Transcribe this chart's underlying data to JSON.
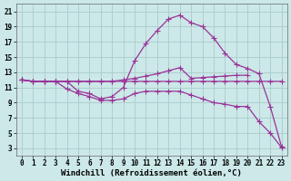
{
  "bg_color": "#cce8e8",
  "grid_color": "#aacccc",
  "line_color": "#993399",
  "line_width": 0.9,
  "marker": "+",
  "marker_size": 4,
  "xlabel": "Windchill (Refroidissement éolien,°C)",
  "xlabel_fontsize": 6.5,
  "tick_fontsize": 5.5,
  "xlim": [
    -0.5,
    23.5
  ],
  "ylim": [
    2,
    22
  ],
  "yticks": [
    3,
    5,
    7,
    9,
    11,
    13,
    15,
    17,
    19,
    21
  ],
  "xticks": [
    0,
    1,
    2,
    3,
    4,
    5,
    6,
    7,
    8,
    9,
    10,
    11,
    12,
    13,
    14,
    15,
    16,
    17,
    18,
    19,
    20,
    21,
    22,
    23
  ],
  "line1_x": [
    0,
    1,
    2,
    3,
    4,
    5,
    6,
    7,
    8,
    9,
    10,
    11,
    12,
    13,
    14,
    15,
    16,
    17,
    18,
    19,
    20,
    21,
    22,
    23
  ],
  "line1_y": [
    12.0,
    11.8,
    11.8,
    11.8,
    11.8,
    11.8,
    11.8,
    11.8,
    11.8,
    11.8,
    11.8,
    11.8,
    11.8,
    11.8,
    11.8,
    11.8,
    11.8,
    11.8,
    11.8,
    11.8,
    11.8,
    11.8,
    11.8,
    11.8
  ],
  "line2_x": [
    0,
    1,
    2,
    3,
    4,
    5,
    6,
    7,
    8,
    9,
    10,
    11,
    12,
    13,
    14,
    15,
    16,
    17,
    18,
    19,
    20
  ],
  "line2_y": [
    12.0,
    11.8,
    11.8,
    11.8,
    11.8,
    11.8,
    11.8,
    11.8,
    11.8,
    12.0,
    12.2,
    12.5,
    12.8,
    13.2,
    13.6,
    12.2,
    12.3,
    12.4,
    12.5,
    12.6,
    12.6
  ],
  "line3_x": [
    0,
    1,
    2,
    3,
    4,
    5,
    6,
    7,
    8,
    9,
    10,
    11,
    12,
    13,
    14,
    15,
    16,
    17,
    18,
    19,
    20,
    21,
    22,
    23
  ],
  "line3_y": [
    12.0,
    11.8,
    11.8,
    11.8,
    10.8,
    10.2,
    9.8,
    9.3,
    9.3,
    9.5,
    10.2,
    10.5,
    10.5,
    10.5,
    10.5,
    10.0,
    9.5,
    9.0,
    8.8,
    8.5,
    8.5,
    6.5,
    5.0,
    3.1
  ],
  "line4_x": [
    0,
    1,
    2,
    3,
    4,
    5,
    6,
    7,
    8,
    9,
    10,
    11,
    12,
    13,
    14,
    15,
    16,
    17,
    18,
    19,
    20,
    21,
    22,
    23
  ],
  "line4_y": [
    12.0,
    11.8,
    11.8,
    11.8,
    11.8,
    10.5,
    10.2,
    9.5,
    9.8,
    11.0,
    14.5,
    16.8,
    18.5,
    20.0,
    20.5,
    19.5,
    19.0,
    17.5,
    15.5,
    14.0,
    13.5,
    12.8,
    8.5,
    3.2
  ]
}
